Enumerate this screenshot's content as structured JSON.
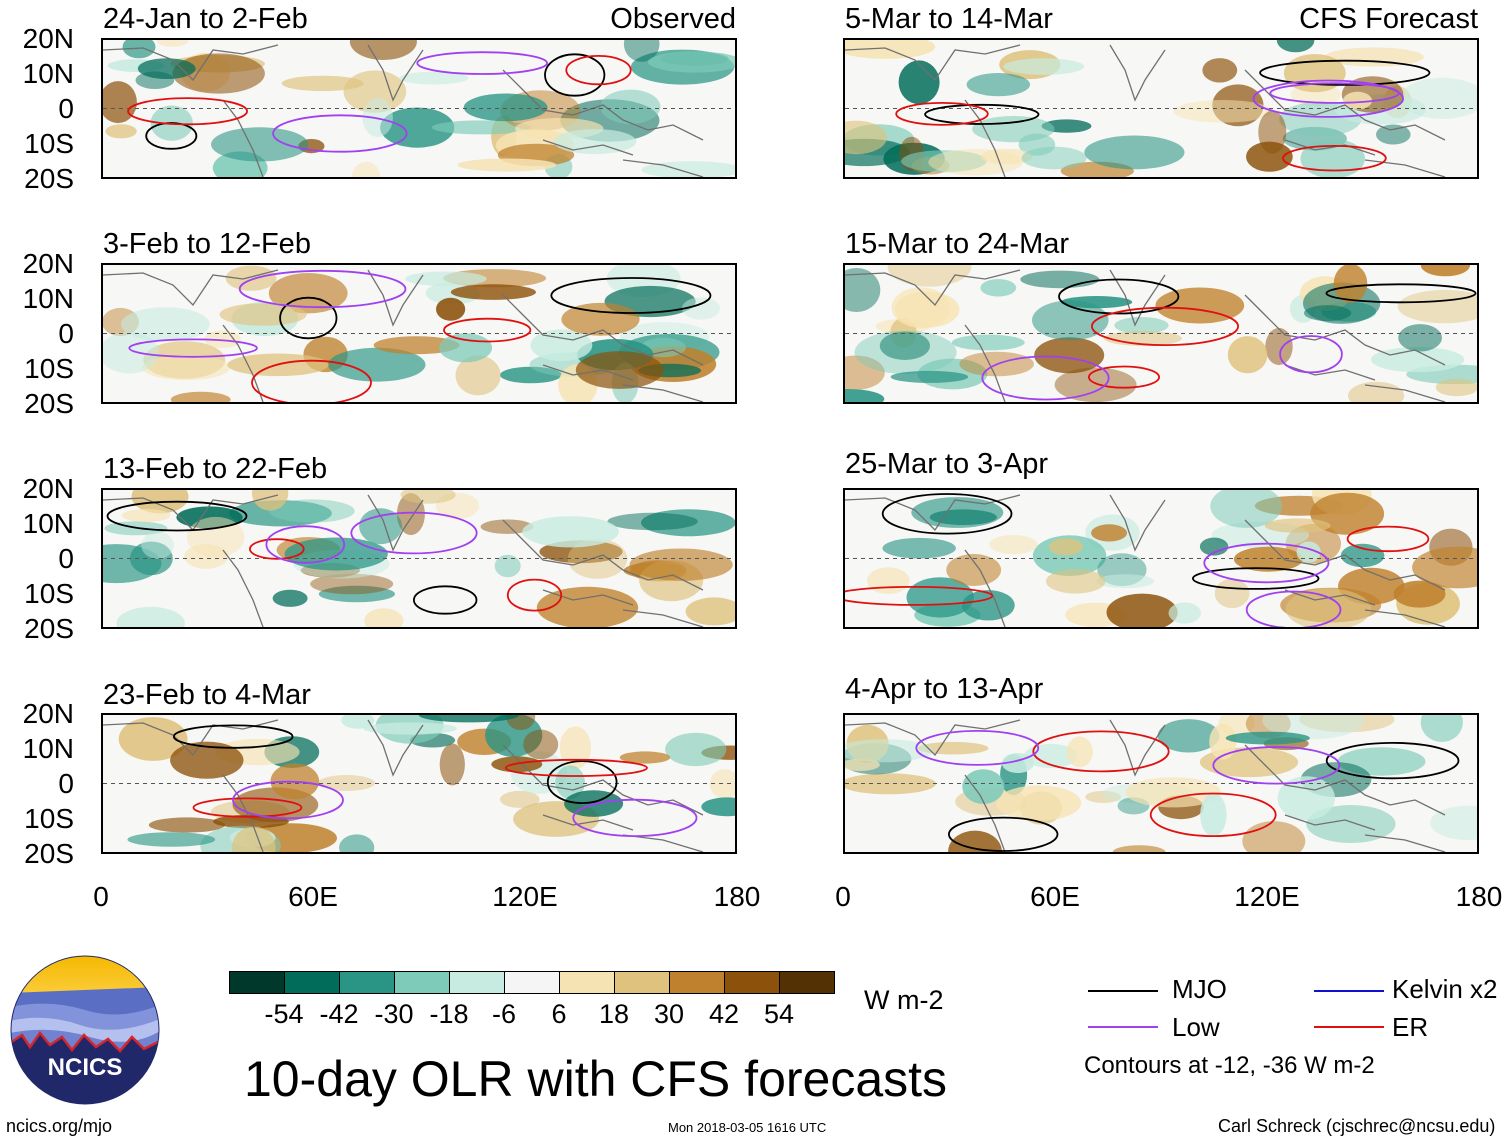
{
  "header": {
    "left_tag": "Observed",
    "right_tag": "CFS Forecast"
  },
  "panels": {
    "left": [
      {
        "title": "24-Jan to 2-Feb"
      },
      {
        "title": "3-Feb to 12-Feb"
      },
      {
        "title": "13-Feb to 22-Feb"
      },
      {
        "title": "23-Feb to 4-Mar"
      }
    ],
    "right": [
      {
        "title": "5-Mar to 14-Mar"
      },
      {
        "title": "15-Mar to 24-Mar"
      },
      {
        "title": "25-Mar to 3-Apr"
      },
      {
        "title": "4-Apr to 13-Apr"
      }
    ]
  },
  "axes": {
    "lat_labels": [
      "20N",
      "10N",
      "0",
      "10S",
      "20S"
    ],
    "lon_labels": [
      "0",
      "60E",
      "120E",
      "180"
    ]
  },
  "colorbar": {
    "labels": [
      "-54",
      "-42",
      "-30",
      "-18",
      "-6",
      "6",
      "18",
      "30",
      "42",
      "54"
    ],
    "colors": [
      "#00382c",
      "#016c59",
      "#2a9585",
      "#7dcbb8",
      "#c7ebe0",
      "#f5f5f5",
      "#f6e3b3",
      "#dfc27d",
      "#bf812d",
      "#8c510a",
      "#543005"
    ],
    "units": "W m-2"
  },
  "title": "10-day OLR with CFS forecasts",
  "legend": {
    "items": [
      {
        "label": "MJO",
        "color": "#000000"
      },
      {
        "label": "Kelvin x2",
        "color": "#1010d0"
      },
      {
        "label": "Low",
        "color": "#a040f0"
      },
      {
        "label": "ER",
        "color": "#e01010"
      }
    ],
    "note": "Contours at -12, -36 W m-2"
  },
  "logo": {
    "text": "NCICS"
  },
  "footer": {
    "url": "ncics.org/mjo",
    "timestamp": "Mon 2018-03-05 1616 UTC",
    "credit": "Carl Schreck (cjschrec@ncsu.edu)"
  }
}
